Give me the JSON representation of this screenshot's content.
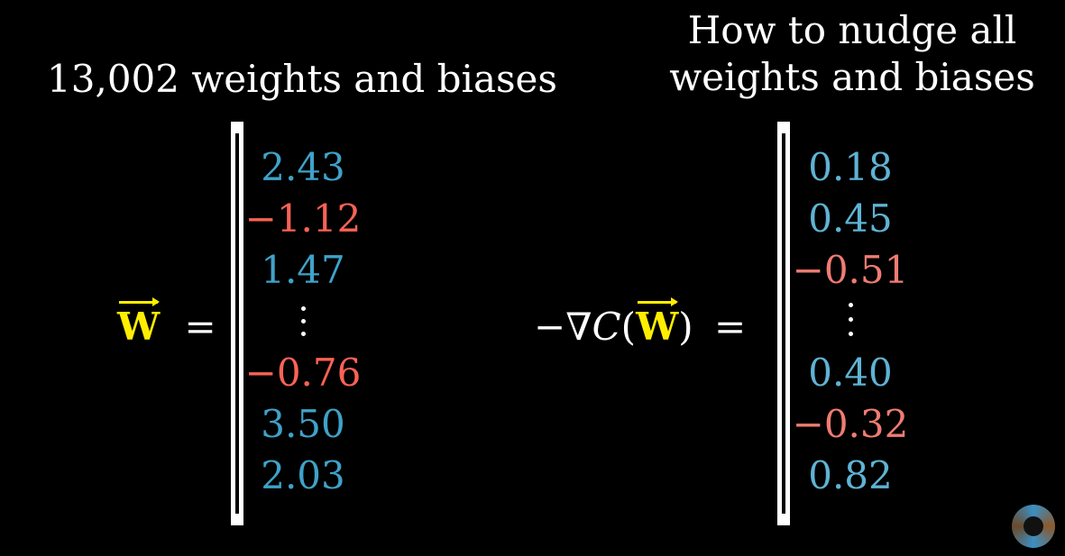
{
  "colors": {
    "positive": "#3fa2c9",
    "positive_light": "#5fb3d4",
    "negative": "#fc6255",
    "negative_light": "#f07c72",
    "vector": "#ffee00",
    "background": "#000000"
  },
  "left": {
    "title": "13,002 weights and biases",
    "lhs_symbol": "W",
    "equals": "=",
    "entries": [
      {
        "text": "2.43",
        "sign": "positive"
      },
      {
        "text": "−1.12",
        "sign": "negative"
      },
      {
        "text": "1.47",
        "sign": "positive"
      },
      {
        "text": "−0.76",
        "sign": "negative"
      },
      {
        "text": "3.50",
        "sign": "positive"
      },
      {
        "text": "2.03",
        "sign": "positive"
      }
    ]
  },
  "right": {
    "title_line1": "How to nudge all",
    "title_line2": "weights and biases",
    "lhs_prefix": "−∇",
    "lhs_func": "C",
    "lhs_open": "(",
    "lhs_symbol": "W",
    "lhs_close": ")",
    "equals": "=",
    "entries": [
      {
        "text": "0.18",
        "sign": "positive"
      },
      {
        "text": "0.45",
        "sign": "positive"
      },
      {
        "text": "−0.51",
        "sign": "negative"
      },
      {
        "text": "0.40",
        "sign": "positive"
      },
      {
        "text": "−0.32",
        "sign": "negative"
      },
      {
        "text": "0.82",
        "sign": "positive"
      }
    ]
  },
  "logo": {
    "icon": "3blue1brown-pi-eye-icon"
  }
}
